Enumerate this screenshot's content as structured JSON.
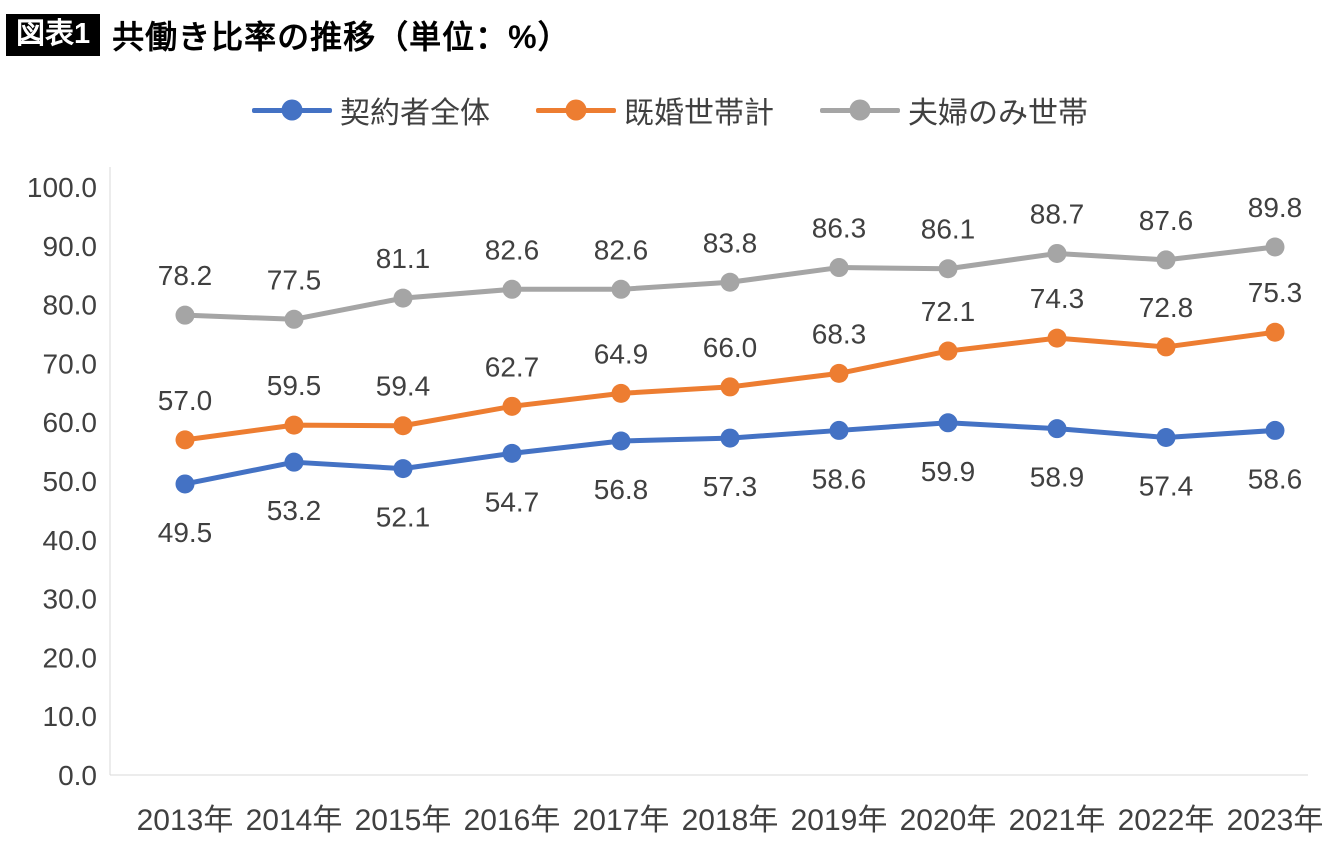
{
  "header": {
    "badge": "図表1",
    "title": "共働き比率の推移（単位：%）"
  },
  "chart_data": {
    "type": "line",
    "title": "共働き比率の推移（単位：%）",
    "xlabel": "",
    "ylabel": "",
    "categories": [
      "2013年",
      "2014年",
      "2015年",
      "2016年",
      "2017年",
      "2018年",
      "2019年",
      "2020年",
      "2021年",
      "2022年",
      "2023年"
    ],
    "series": [
      {
        "name": "契約者全体",
        "color": "#4472C4",
        "label_position": "below",
        "values": [
          49.5,
          53.2,
          52.1,
          54.7,
          56.8,
          57.3,
          58.6,
          59.9,
          58.9,
          57.4,
          58.6
        ]
      },
      {
        "name": "既婚世帯計",
        "color": "#ED7D31",
        "label_position": "above",
        "values": [
          57.0,
          59.5,
          59.4,
          62.7,
          64.9,
          66.0,
          68.3,
          72.1,
          74.3,
          72.8,
          75.3
        ]
      },
      {
        "name": "夫婦のみ世帯",
        "color": "#A5A5A5",
        "label_position": "above",
        "values": [
          78.2,
          77.5,
          81.1,
          82.6,
          82.6,
          83.8,
          86.3,
          86.1,
          88.7,
          87.6,
          89.8
        ]
      }
    ],
    "ylim": [
      0,
      100
    ],
    "ytick_step": 10,
    "ytick_format": "one_decimal",
    "grid": false,
    "legend_position": "top"
  },
  "colors": {
    "axis_text": "#404040",
    "data_label_text": "#404040",
    "axis_line": "#D9D9D9",
    "badge_bg": "#000000",
    "badge_text": "#FFFFFF"
  }
}
